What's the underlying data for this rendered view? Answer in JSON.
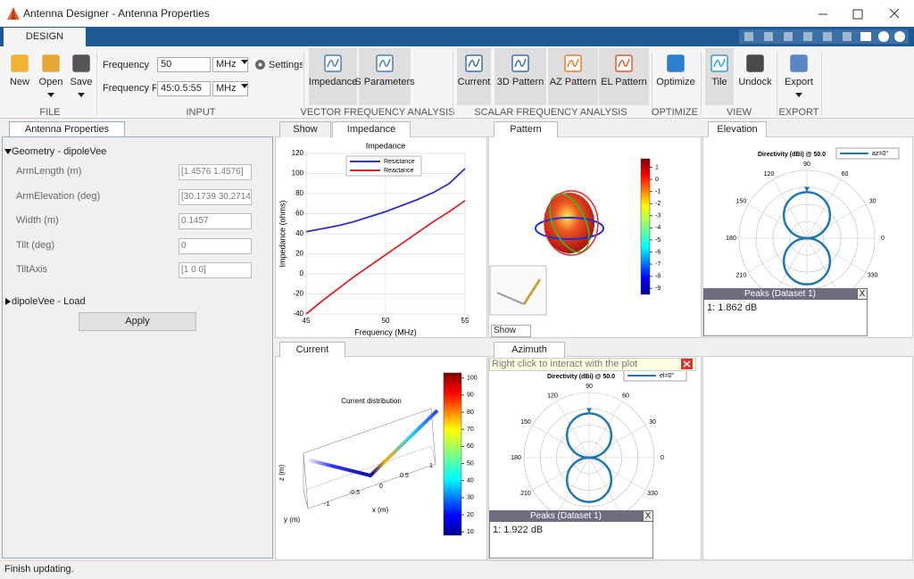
{
  "window": {
    "title": "Antenna Designer - Antenna Properties"
  },
  "ribbon": {
    "tab": "DESIGN",
    "groups": [
      {
        "label": "FILE",
        "buttons": [
          "New",
          "Open",
          "Save"
        ]
      },
      {
        "label": "INPUT"
      },
      {
        "label": "VECTOR FREQUENCY ANALYSIS",
        "buttons": [
          "Impedance",
          "S Parameters"
        ]
      },
      {
        "label": "SCALAR FREQUENCY ANALYSIS",
        "buttons": [
          "Current",
          "3D Pattern",
          "AZ Pattern",
          "EL Pattern"
        ]
      },
      {
        "label": "OPTIMIZE",
        "buttons": [
          "Optimize"
        ]
      },
      {
        "label": "VIEW",
        "buttons": [
          "Tile",
          "Undock"
        ]
      },
      {
        "label": "EXPORT",
        "buttons": [
          "Export"
        ]
      }
    ]
  },
  "input": {
    "frequency_label": "Frequency",
    "frequency": "50",
    "frequency_unit": "MHz",
    "settings": "Settings",
    "range_label": "Frequency Range",
    "range": "45:0.5:55",
    "range_unit": "MHz"
  },
  "properties": {
    "tab": "Antenna Properties",
    "geometry_header": "Geometry - dipoleVee",
    "fields": [
      {
        "label": "ArmLength (m)",
        "value": "[1.4576 1.4576]"
      },
      {
        "label": "ArmElevation (deg)",
        "value": "[30.1739 30.2714]"
      },
      {
        "label": "Width (m)",
        "value": "0.1457"
      },
      {
        "label": "Tilt (deg)",
        "value": "0"
      },
      {
        "label": "TiltAxis",
        "value": "[1 0 0]"
      }
    ],
    "load_header": "dipoleVee - Load",
    "apply": "Apply"
  },
  "impedance_panel": {
    "tabs": [
      "Show",
      "Impedance"
    ],
    "chart": {
      "type": "line",
      "title": "Impedance",
      "x_label": "Frequency (MHz)",
      "y_label": "Impedance (ohms)",
      "x": [
        45,
        46,
        47,
        48,
        49,
        50,
        51,
        52,
        53,
        54,
        55
      ],
      "series": [
        {
          "name": "Resistance",
          "color": "#2f2fd0",
          "values": [
            42,
            45,
            48,
            52,
            57,
            62,
            68,
            74,
            81,
            90,
            105
          ]
        },
        {
          "name": "Reactance",
          "color": "#e02626",
          "values": [
            -40,
            -27,
            -15,
            -3,
            8,
            19,
            30,
            41,
            52,
            62,
            73
          ]
        }
      ],
      "xlim": [
        45,
        55
      ],
      "xticks": [
        45,
        50,
        55
      ],
      "ylim": [
        -40,
        120
      ],
      "yticks": [
        -40,
        -20,
        0,
        20,
        40,
        60,
        80,
        100,
        120
      ],
      "grid": true
    }
  },
  "pattern_panel": {
    "tab": "Pattern",
    "colorbar_ticks": [
      1,
      0,
      -1,
      -2,
      -3,
      -4,
      -5,
      -6,
      -7,
      -8,
      -9
    ],
    "colorbar_lim": [
      -9.5,
      1.7
    ],
    "dropdown": "Show"
  },
  "elevation_panel": {
    "tab": "Elevation",
    "title": "Directivity (dBi) @ 50.0",
    "legend": "az=0°",
    "angle_labels": [
      90,
      120,
      60,
      150,
      30,
      180,
      0,
      210,
      330
    ],
    "peaks_title": "Peaks (Dataset 1)",
    "close": "X",
    "peaks_value": "1: 1.862 dB"
  },
  "current_panel": {
    "tab": "Current",
    "title": "Current distribution",
    "colorbar_ticks": [
      100,
      90,
      80,
      70,
      60,
      50,
      40,
      30,
      20,
      10
    ],
    "colorbar_lim": [
      8,
      103
    ],
    "z_label": "z (m)",
    "y_label": "y (m)",
    "x_label": "x (m)",
    "x_ticks": [
      -1,
      -0.5,
      0,
      0.5,
      1
    ]
  },
  "azimuth_panel": {
    "tab": "Azimuth",
    "hint": "Right click to interact with the plot",
    "title": "Directivity (dBi) @ 50.0",
    "legend": "el=0°",
    "angle_labels": [
      90,
      120,
      60,
      150,
      30,
      180,
      0,
      210,
      330
    ],
    "peaks_title": "Peaks (Dataset 1)",
    "close": "X",
    "peaks_value": "1: 1.922 dB"
  },
  "status": "Finish updating."
}
